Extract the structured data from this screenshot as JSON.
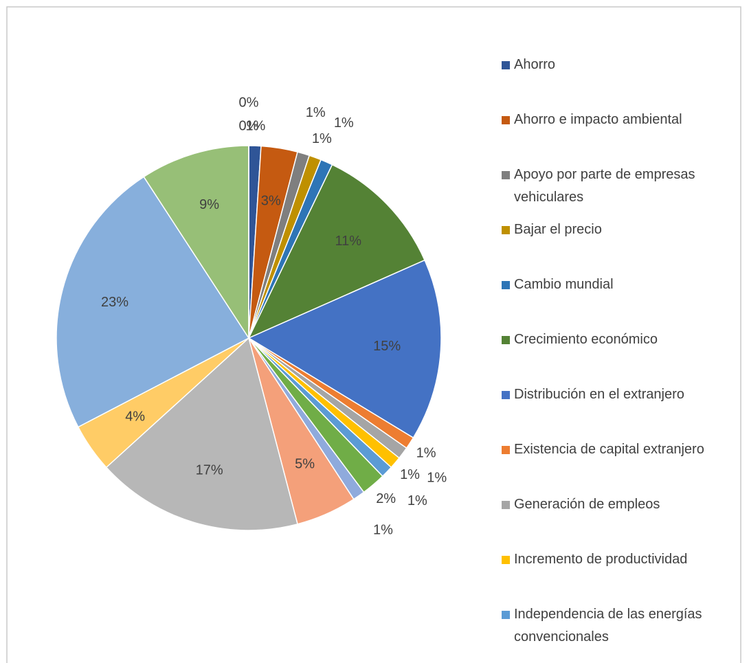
{
  "chart_data": {
    "type": "pie",
    "categories": [
      "Ahorro",
      "Ahorro e impacto ambiental",
      "Apoyo por parte de empresas vehiculares",
      "Bajar el precio",
      "Cambio mundial",
      "Crecimiento económico",
      "Distribución en el extranjero",
      "Existencia de capital extranjero",
      "Generación de empleos",
      "Incremento de productividad",
      "Independencia de las energías convencionales",
      null,
      null,
      null,
      null,
      null,
      null,
      null,
      null,
      null
    ],
    "values": [
      1,
      3,
      1,
      1,
      1,
      11,
      15,
      1,
      1,
      1,
      1,
      2,
      1,
      5,
      17,
      4,
      23,
      9,
      0,
      0
    ],
    "value_labels": [
      "1%",
      "3%",
      "1%",
      "1%",
      "1%",
      "11%",
      "15%",
      "1%",
      "1%",
      "1%",
      "1%",
      "2%",
      "1%",
      "5%",
      "17%",
      "4%",
      "23%",
      "9%",
      "0%",
      "0%"
    ],
    "colors": [
      "#2f5597",
      "#c55a11",
      "#7f7f7f",
      "#bf9000",
      "#2e75b6",
      "#548235",
      "#4472c4",
      "#ed7d31",
      "#a5a5a5",
      "#ffc000",
      "#5b9bd5",
      "#70ad47",
      "#8faadc",
      "#f4a07a",
      "#b7b7b7",
      "#ffcc66",
      "#87afdc",
      "#97bf77",
      "#9e480e",
      "#636363"
    ],
    "legend": "right"
  }
}
